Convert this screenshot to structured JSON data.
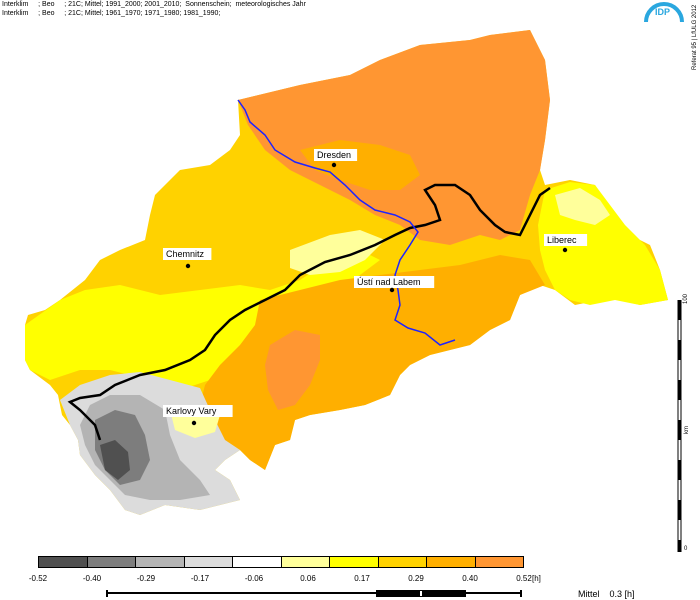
{
  "header": {
    "line1": "Interklim     ; Beo     ; 21C; Mittel; 1991_2000; 2001_2010;  Sonnenschein;  meteorologisches Jahr",
    "line2": "Interklim     ; Beo     ; 21C; Mittel; 1961_1970; 1971_1980; 1981_1990;"
  },
  "logo": {
    "text": "IDP",
    "color": "#2aa7df"
  },
  "side_credit": "Referat 95 | LfULG 2012",
  "cities": [
    {
      "name": "Dresden"
    },
    {
      "name": "Chemnitz"
    },
    {
      "name": "Ústí nad Labem"
    },
    {
      "name": "Liberec"
    },
    {
      "name": "Karlovy Vary"
    }
  ],
  "legend": {
    "colors": [
      "#505050",
      "#7d7d7d",
      "#b4b4b4",
      "#dcdcdc",
      "#ffffff",
      "#ffff9b",
      "#ffff00",
      "#ffd200",
      "#ffaf00",
      "#ff9632"
    ],
    "ticks": [
      "-0.52",
      "-0.40",
      "-0.29",
      "-0.17",
      "-0.06",
      "0.06",
      "0.17",
      "0.29",
      "0.40",
      "0.52"
    ],
    "unit": "[h]"
  },
  "mittel": {
    "label": "Mittel",
    "value": "0.3 [h]"
  },
  "scale_labels": {
    "top": "100",
    "mid": "km",
    "bottom": "0"
  },
  "colors": {
    "river": "#1f23ff",
    "border": "#000000"
  }
}
